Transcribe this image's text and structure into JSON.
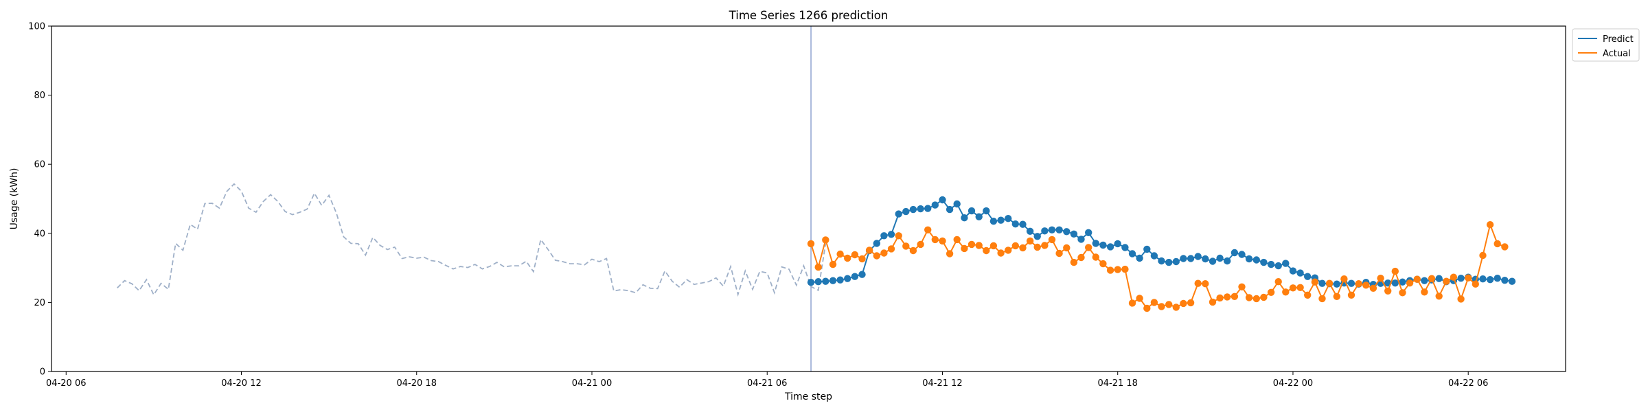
{
  "chart_data": {
    "type": "line",
    "title": "Time Series 1266 prediction",
    "xlabel": "Time step",
    "ylabel": "Usage (kWh)",
    "ylim": [
      0,
      100
    ],
    "yticks": [
      0,
      20,
      40,
      60,
      80,
      100
    ],
    "x_range": [
      "2024-04-20 05:30",
      "2024-04-22 09:20"
    ],
    "xticks": [
      {
        "t": "2024-04-20 06:00",
        "label": "04-20 06"
      },
      {
        "t": "2024-04-20 12:00",
        "label": "04-20 12"
      },
      {
        "t": "2024-04-20 18:00",
        "label": "04-20 18"
      },
      {
        "t": "2024-04-21 00:00",
        "label": "04-21 00"
      },
      {
        "t": "2024-04-21 06:00",
        "label": "04-21 06"
      },
      {
        "t": "2024-04-21 12:00",
        "label": "04-21 12"
      },
      {
        "t": "2024-04-21 18:00",
        "label": "04-21 18"
      },
      {
        "t": "2024-04-22 00:00",
        "label": "04-22 00"
      },
      {
        "t": "2024-04-22 06:00",
        "label": "04-22 06"
      }
    ],
    "split_time": "2024-04-21 07:30",
    "legend": {
      "placement": "top-right",
      "entries": [
        "Predict",
        "Actual"
      ]
    },
    "colors": {
      "predict": "#1f77b4",
      "actual": "#ff7f0e",
      "history": "#9fb0c8",
      "split": "#8fa3d0"
    },
    "history": {
      "start": "2024-04-20 07:45",
      "step_minutes": 15,
      "values": [
        24.2,
        26.3,
        25.4,
        23.4,
        26.6,
        22.2,
        25.5,
        23.8,
        37.1,
        35.1,
        42.6,
        41.2,
        48.6,
        48.7,
        47.3,
        52.1,
        54.3,
        52.2,
        47.3,
        46.1,
        49.2,
        51.2,
        49.2,
        46.3,
        45.4,
        46.1,
        47.0,
        51.6,
        48.1,
        51.0,
        45.9,
        39.0,
        37.1,
        37.0,
        33.7,
        38.8,
        36.5,
        35.3,
        36.0,
        32.7,
        33.2,
        32.8,
        33.1,
        32.1,
        31.8,
        30.7,
        29.7,
        30.4,
        30.1,
        31.0,
        29.7,
        30.4,
        31.6,
        30.3,
        30.6,
        30.6,
        31.9,
        28.9,
        38.2,
        35.3,
        32.2,
        31.8,
        31.2,
        31.2,
        30.9,
        32.5,
        31.8,
        32.7,
        23.3,
        23.7,
        23.4,
        22.8,
        25.1,
        24.1,
        24.0,
        29.1,
        26.1,
        24.4,
        26.6,
        25.2,
        25.6,
        26.0,
        27.1,
        24.7,
        30.4,
        22.3,
        29.1,
        23.8,
        29.0,
        28.5,
        22.8,
        30.3,
        29.6,
        25.0,
        30.6,
        24.6,
        23.5,
        37.0
      ]
    },
    "series": [
      {
        "name": "Predict",
        "start": "2024-04-21 07:30",
        "step_minutes": 15,
        "values": [
          25.8,
          26.0,
          26.1,
          26.3,
          26.5,
          26.9,
          27.5,
          28.1,
          35.0,
          37.1,
          39.3,
          39.7,
          45.6,
          46.3,
          46.9,
          47.1,
          47.2,
          48.2,
          49.7,
          46.9,
          48.5,
          44.5,
          46.5,
          44.8,
          46.5,
          43.5,
          43.8,
          44.3,
          42.7,
          42.6,
          40.6,
          39.1,
          40.7,
          41.0,
          41.0,
          40.5,
          39.8,
          38.3,
          40.2,
          37.1,
          36.6,
          36.1,
          37.0,
          35.9,
          34.1,
          32.8,
          35.4,
          33.5,
          32.0,
          31.6,
          31.8,
          32.7,
          32.7,
          33.3,
          32.6,
          31.9,
          32.8,
          32.0,
          34.4,
          33.9,
          32.6,
          32.3,
          31.6,
          31.0,
          30.6,
          31.3,
          29.1,
          28.5,
          27.5,
          27.1,
          25.5,
          25.4,
          25.3,
          25.6,
          25.5,
          25.3,
          25.8,
          25.2,
          25.5,
          25.6,
          25.6,
          25.9,
          26.3,
          26.7,
          26.3,
          26.5,
          26.9,
          26.0,
          26.3,
          27.0,
          27.3,
          26.7,
          26.8,
          26.6,
          27.0,
          26.4,
          26.1
        ]
      },
      {
        "name": "Actual",
        "start": "2024-04-21 07:30",
        "step_minutes": 15,
        "values": [
          37.0,
          30.2,
          38.1,
          31.0,
          34.0,
          32.8,
          33.8,
          32.6,
          35.1,
          33.5,
          34.3,
          35.5,
          39.3,
          36.3,
          35.0,
          36.8,
          41.0,
          38.2,
          37.8,
          34.1,
          38.2,
          35.6,
          36.8,
          36.5,
          35.0,
          36.4,
          34.3,
          35.1,
          36.4,
          35.8,
          37.8,
          36.0,
          36.5,
          38.2,
          34.2,
          35.8,
          31.6,
          33.0,
          35.9,
          33.1,
          31.2,
          29.3,
          29.5,
          29.6,
          19.8,
          21.2,
          18.3,
          20.0,
          18.8,
          19.4,
          18.6,
          19.7,
          19.9,
          25.5,
          25.4,
          20.1,
          21.3,
          21.6,
          21.7,
          24.5,
          21.4,
          21.1,
          21.5,
          22.9,
          26.0,
          23.0,
          24.2,
          24.3,
          22.1,
          25.9,
          21.1,
          25.5,
          21.7,
          26.8,
          22.1,
          25.4,
          25.0,
          24.1,
          27.0,
          23.3,
          29.0,
          22.8,
          25.6,
          26.7,
          23.0,
          26.9,
          21.8,
          26.1,
          27.3,
          21.0,
          27.1,
          25.3,
          33.6,
          42.5,
          37.0,
          36.1
        ]
      }
    ]
  }
}
